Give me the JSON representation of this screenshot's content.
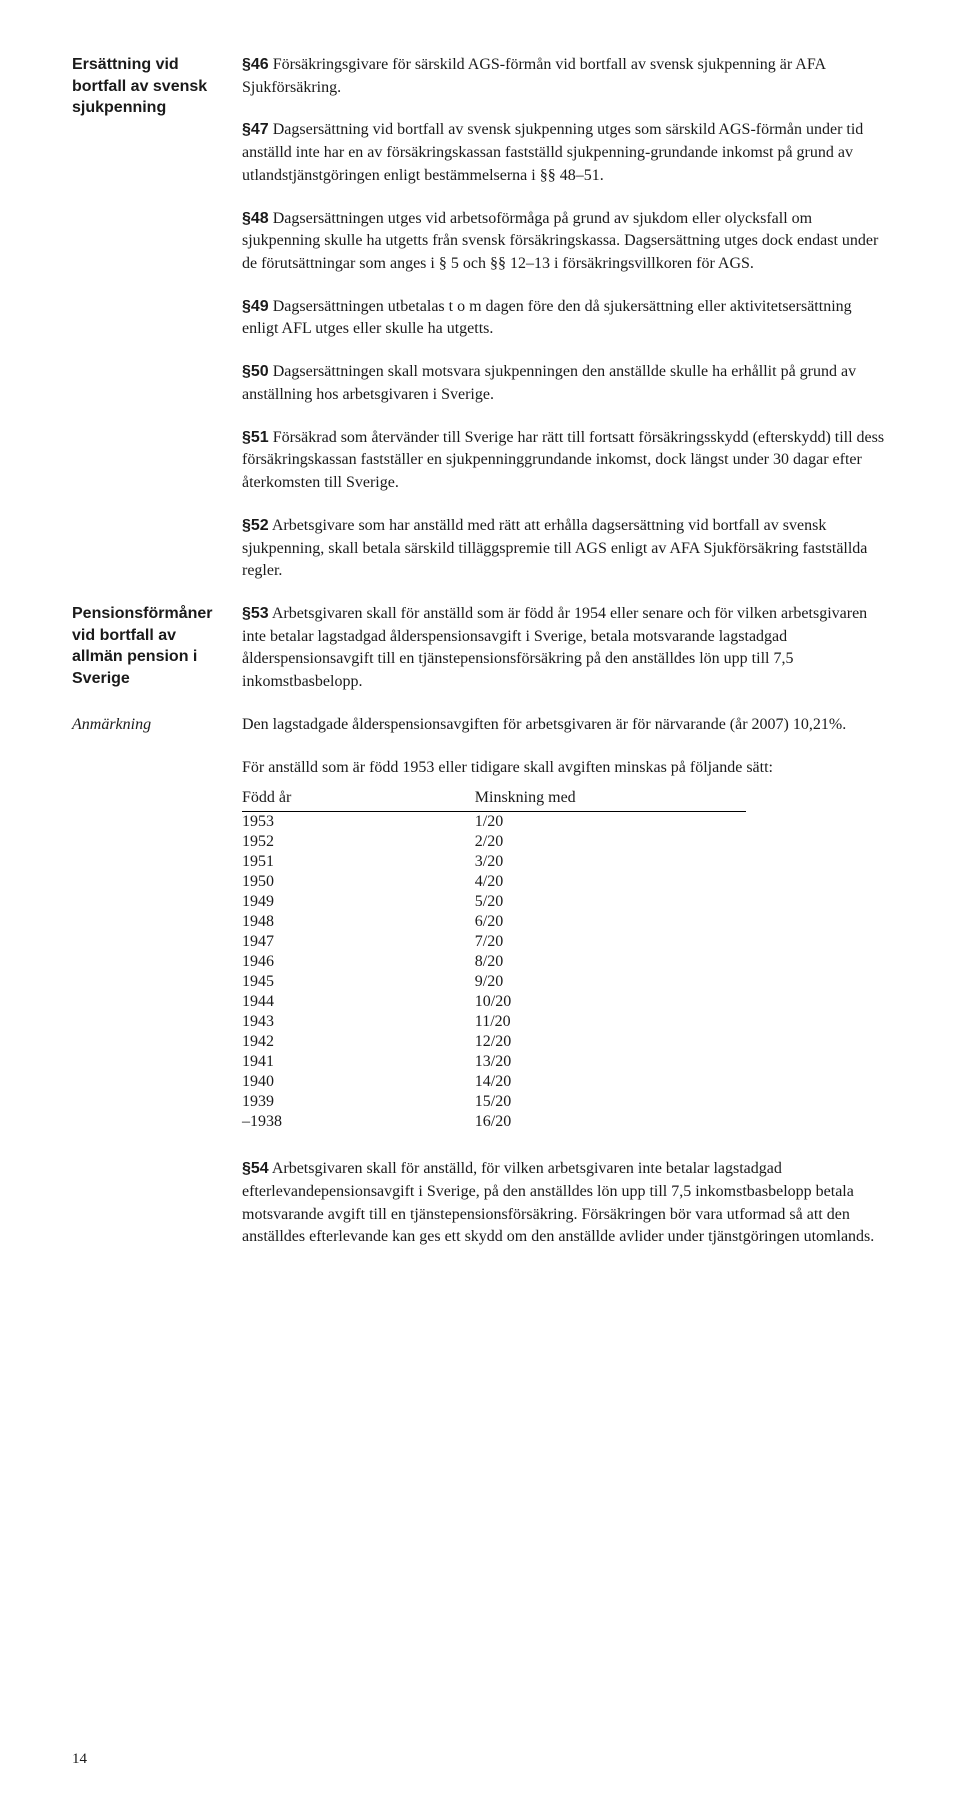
{
  "leftLabels": {
    "ersattning": "Ersättning vid bortfall av svensk sjukpenning",
    "pension": "Pensionsförmåner vid bortfall av allmän pension i Sverige",
    "anmarkning": "Anmärkning"
  },
  "p46": {
    "num": "§46",
    "text": "  Försäkringsgivare för särskild AGS-förmån vid bortfall av svensk sjukpenning är AFA Sjukförsäkring."
  },
  "p47": {
    "num": "§47",
    "text": "  Dagsersättning vid bortfall av svensk sjukpenning utges som särskild AGS-förmån under tid anställd inte har en av försäkringskassan fastställd sjukpenning-grundande inkomst på grund av utlandstjänstgöringen enligt bestämmelserna i §§ 48–51."
  },
  "p48": {
    "num": "§48",
    "text": "  Dagsersättningen utges vid arbetsoförmåga på grund av sjukdom eller olycksfall om sjukpenning skulle ha utgetts från svensk försäkringskassa. Dagsersättning utges dock endast under de förutsättningar som anges i § 5 och §§ 12–13 i försäkringsvillkoren för AGS."
  },
  "p49": {
    "num": "§49",
    "text": "  Dagsersättningen utbetalas t o m dagen före den då sjukersättning eller aktivitetsersättning enligt AFL utges eller skulle ha utgetts."
  },
  "p50": {
    "num": "§50",
    "text": "  Dagsersättningen skall motsvara sjukpenningen den anställde skulle ha erhållit på grund av anställning hos arbetsgivaren i Sverige."
  },
  "p51": {
    "num": "§51",
    "text": "  Försäkrad som återvänder till Sverige har rätt till fortsatt försäkringsskydd (efterskydd) till dess försäkringskassan fastställer en sjukpenninggrundande inkomst, dock längst under 30 dagar efter återkomsten till Sverige."
  },
  "p52": {
    "num": "§52",
    "text": "  Arbetsgivare som har anställd med rätt att erhålla dagsersättning vid bortfall av svensk sjukpenning, skall betala särskild tilläggspremie till AGS enligt av AFA Sjukförsäkring fastställda regler."
  },
  "p53": {
    "num": "§53",
    "text": "  Arbetsgivaren skall för anställd som är född år 1954 eller senare och för vilken arbetsgivaren inte betalar lagstadgad ålderspensionsavgift i Sverige, betala motsvarande lagstadgad ålderspensionsavgift till en tjänstepensionsförsäkring på den anställdes lön upp till 7,5 inkomstbasbelopp."
  },
  "anm_text": "Den lagstadgade ålderspensionsavgiften för arbetsgivaren är för närvarande (år 2007) 10,21%.",
  "table_intro": "För anställd som är född 1953 eller tidigare skall avgiften minskas på följande sätt:",
  "table": {
    "headers": {
      "year": "Född år",
      "reduction": "Minskning med"
    },
    "rows": [
      {
        "year": "1953",
        "reduction": "1/20"
      },
      {
        "year": "1952",
        "reduction": "2/20"
      },
      {
        "year": "1951",
        "reduction": "3/20"
      },
      {
        "year": "1950",
        "reduction": "4/20"
      },
      {
        "year": "1949",
        "reduction": "5/20"
      },
      {
        "year": "1948",
        "reduction": "6/20"
      },
      {
        "year": "1947",
        "reduction": "7/20"
      },
      {
        "year": "1946",
        "reduction": "8/20"
      },
      {
        "year": "1945",
        "reduction": "9/20"
      },
      {
        "year": "1944",
        "reduction": "10/20"
      },
      {
        "year": "1943",
        "reduction": "11/20"
      },
      {
        "year": "1942",
        "reduction": "12/20"
      },
      {
        "year": "1941",
        "reduction": "13/20"
      },
      {
        "year": "1940",
        "reduction": "14/20"
      },
      {
        "year": "1939",
        "reduction": "15/20"
      },
      {
        "year": "–1938",
        "reduction": "16/20"
      }
    ]
  },
  "p54": {
    "num": "§54",
    "text": "  Arbetsgivaren skall för anställd, för vilken arbetsgivaren inte betalar lagstadgad efterlevandepensionsavgift i Sverige, på den anställdes lön upp till 7,5 inkomstbasbelopp betala motsvarande avgift till en tjänstepensionsförsäkring. Försäkringen bör vara utformad så att den anställdes efterlevande kan ges ett skydd om den anställde avlider under tjänstgöringen utomlands."
  },
  "page_number": "14"
}
